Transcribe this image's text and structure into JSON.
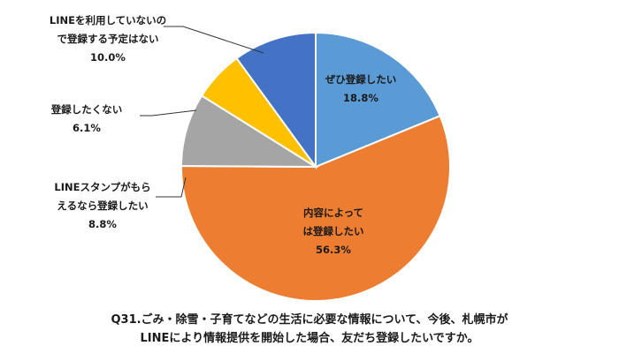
{
  "chart_data": {
    "type": "pie",
    "title_lines": [
      "Q31.ごみ・除雪・子育てなどの生活に必要な情報について、今後、札幌市が",
      "LINEにより情報提供を開始した場合、友だち登録したいですか。"
    ],
    "slices": [
      {
        "lines": [
          "ぜひ登録したい"
        ],
        "value": 18.8,
        "value_label": "18.8%",
        "color": "#5b9bd5"
      },
      {
        "lines": [
          "内容によって",
          "は登録したい"
        ],
        "value": 56.3,
        "value_label": "56.3%",
        "color": "#ed7d31"
      },
      {
        "lines": [
          "LINEスタンプがもら",
          "えるなら登録したい"
        ],
        "value": 8.8,
        "value_label": "8.8%",
        "color": "#a5a5a5"
      },
      {
        "lines": [
          "登録したくない"
        ],
        "value": 6.1,
        "value_label": "6.1%",
        "color": "#ffc000"
      },
      {
        "lines": [
          "LINEを利用していないの",
          "で登録する予定はない"
        ],
        "value": 10.0,
        "value_label": "10.0%",
        "color": "#4472c4"
      }
    ],
    "start_angle_deg": 0,
    "direction": "clockwise"
  }
}
